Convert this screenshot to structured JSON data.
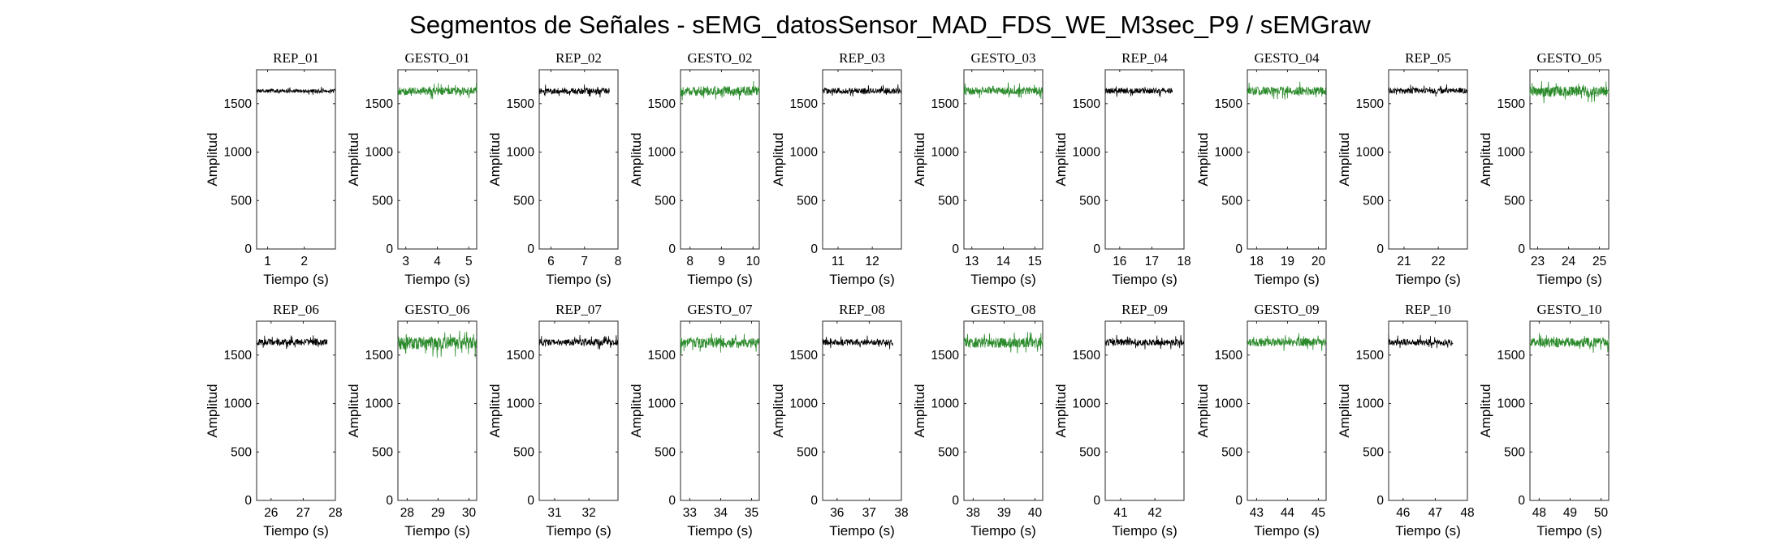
{
  "figure": {
    "title": "Segmentos de Señales - sEMG_datosSensor_MAD_FDS_WE_M3sec_P9 / sEMGraw"
  },
  "colors": {
    "rep_signal": "#000000",
    "gesto_signal": "#2a8a2a",
    "axes": "#262626",
    "background": "#ffffff"
  },
  "chart_data": [
    {
      "type": "line",
      "title": "REP_01",
      "color": "black",
      "xlabel": "Tiempo (s)",
      "ylabel": "Amplitud",
      "xlim": [
        0.7,
        2.85
      ],
      "ylim": [
        0,
        1850
      ],
      "xticks": [
        1,
        2
      ],
      "yticks": [
        0,
        500,
        1000,
        1500
      ],
      "signal": {
        "x_start": 0.7,
        "x_end": 2.85,
        "mean": 1630,
        "range": [
          1590,
          1675
        ]
      }
    },
    {
      "type": "line",
      "title": "GESTO_01",
      "color": "green",
      "xlabel": "Tiempo (s)",
      "ylabel": "Amplitud",
      "xlim": [
        2.75,
        5.25
      ],
      "ylim": [
        0,
        1850
      ],
      "xticks": [
        3,
        4,
        5
      ],
      "yticks": [
        0,
        500,
        1000,
        1500
      ],
      "signal": {
        "x_start": 2.75,
        "x_end": 5.25,
        "mean": 1630,
        "range": [
          1540,
          1720
        ]
      }
    },
    {
      "type": "line",
      "title": "REP_02",
      "color": "black",
      "xlabel": "Tiempo (s)",
      "ylabel": "Amplitud",
      "xlim": [
        5.65,
        8.0
      ],
      "ylim": [
        0,
        1850
      ],
      "xticks": [
        6,
        7,
        8
      ],
      "yticks": [
        0,
        500,
        1000,
        1500
      ],
      "signal": {
        "x_start": 5.65,
        "x_end": 7.75,
        "mean": 1630,
        "range": [
          1560,
          1700
        ]
      }
    },
    {
      "type": "line",
      "title": "GESTO_02",
      "color": "green",
      "xlabel": "Tiempo (s)",
      "ylabel": "Amplitud",
      "xlim": [
        7.7,
        10.2
      ],
      "ylim": [
        0,
        1850
      ],
      "xticks": [
        8,
        9,
        10
      ],
      "yticks": [
        0,
        500,
        1000,
        1500
      ],
      "signal": {
        "x_start": 7.7,
        "x_end": 10.2,
        "mean": 1630,
        "range": [
          1520,
          1740
        ]
      }
    },
    {
      "type": "line",
      "title": "REP_03",
      "color": "black",
      "xlabel": "Tiempo (s)",
      "ylabel": "Amplitud",
      "xlim": [
        10.55,
        12.85
      ],
      "ylim": [
        0,
        1850
      ],
      "xticks": [
        11,
        12
      ],
      "yticks": [
        0,
        500,
        1000,
        1500
      ],
      "signal": {
        "x_start": 10.55,
        "x_end": 12.85,
        "mean": 1630,
        "range": [
          1570,
          1700
        ]
      }
    },
    {
      "type": "line",
      "title": "GESTO_03",
      "color": "green",
      "xlabel": "Tiempo (s)",
      "ylabel": "Amplitud",
      "xlim": [
        12.75,
        15.25
      ],
      "ylim": [
        0,
        1850
      ],
      "xticks": [
        13,
        14,
        15
      ],
      "yticks": [
        0,
        500,
        1000,
        1500
      ],
      "signal": {
        "x_start": 12.75,
        "x_end": 15.25,
        "mean": 1630,
        "range": [
          1550,
          1720
        ]
      }
    },
    {
      "type": "line",
      "title": "REP_04",
      "color": "black",
      "xlabel": "Tiempo (s)",
      "ylabel": "Amplitud",
      "xlim": [
        15.55,
        18.0
      ],
      "ylim": [
        0,
        1850
      ],
      "xticks": [
        16,
        17,
        18
      ],
      "yticks": [
        0,
        500,
        1000,
        1500
      ],
      "signal": {
        "x_start": 15.55,
        "x_end": 17.65,
        "mean": 1630,
        "range": [
          1570,
          1700
        ]
      }
    },
    {
      "type": "line",
      "title": "GESTO_04",
      "color": "green",
      "xlabel": "Tiempo (s)",
      "ylabel": "Amplitud",
      "xlim": [
        17.7,
        20.25
      ],
      "ylim": [
        0,
        1850
      ],
      "xticks": [
        18,
        19,
        20
      ],
      "yticks": [
        0,
        500,
        1000,
        1500
      ],
      "signal": {
        "x_start": 17.7,
        "x_end": 20.25,
        "mean": 1630,
        "range": [
          1540,
          1730
        ]
      }
    },
    {
      "type": "line",
      "title": "REP_05",
      "color": "black",
      "xlabel": "Tiempo (s)",
      "ylabel": "Amplitud",
      "xlim": [
        20.55,
        22.85
      ],
      "ylim": [
        0,
        1850
      ],
      "xticks": [
        21,
        22
      ],
      "yticks": [
        0,
        500,
        1000,
        1500
      ],
      "signal": {
        "x_start": 20.55,
        "x_end": 22.85,
        "mean": 1630,
        "range": [
          1570,
          1700
        ]
      }
    },
    {
      "type": "line",
      "title": "GESTO_05",
      "color": "green",
      "xlabel": "Tiempo (s)",
      "ylabel": "Amplitud",
      "xlim": [
        22.75,
        25.3
      ],
      "ylim": [
        0,
        1850
      ],
      "xticks": [
        23,
        24,
        25
      ],
      "yticks": [
        0,
        500,
        1000,
        1500
      ],
      "signal": {
        "x_start": 22.75,
        "x_end": 25.3,
        "mean": 1630,
        "range": [
          1500,
          1740
        ]
      }
    },
    {
      "type": "line",
      "title": "REP_06",
      "color": "black",
      "xlabel": "Tiempo (s)",
      "ylabel": "Amplitud",
      "xlim": [
        25.55,
        28.0
      ],
      "ylim": [
        0,
        1850
      ],
      "xticks": [
        26,
        27,
        28
      ],
      "yticks": [
        0,
        500,
        1000,
        1500
      ],
      "signal": {
        "x_start": 25.55,
        "x_end": 27.75,
        "mean": 1630,
        "range": [
          1560,
          1710
        ]
      }
    },
    {
      "type": "line",
      "title": "GESTO_06",
      "color": "green",
      "xlabel": "Tiempo (s)",
      "ylabel": "Amplitud",
      "xlim": [
        27.7,
        30.25
      ],
      "ylim": [
        0,
        1850
      ],
      "xticks": [
        28,
        29,
        30
      ],
      "yticks": [
        0,
        500,
        1000,
        1500
      ],
      "signal": {
        "x_start": 27.7,
        "x_end": 30.25,
        "mean": 1630,
        "range": [
          1470,
          1760
        ]
      }
    },
    {
      "type": "line",
      "title": "REP_07",
      "color": "black",
      "xlabel": "Tiempo (s)",
      "ylabel": "Amplitud",
      "xlim": [
        30.55,
        32.85
      ],
      "ylim": [
        0,
        1850
      ],
      "xticks": [
        31,
        32
      ],
      "yticks": [
        0,
        500,
        1000,
        1500
      ],
      "signal": {
        "x_start": 30.55,
        "x_end": 32.85,
        "mean": 1630,
        "range": [
          1560,
          1710
        ]
      }
    },
    {
      "type": "line",
      "title": "GESTO_07",
      "color": "green",
      "xlabel": "Tiempo (s)",
      "ylabel": "Amplitud",
      "xlim": [
        32.7,
        35.25
      ],
      "ylim": [
        0,
        1850
      ],
      "xticks": [
        33,
        34,
        35
      ],
      "yticks": [
        0,
        500,
        1000,
        1500
      ],
      "signal": {
        "x_start": 32.7,
        "x_end": 35.25,
        "mean": 1630,
        "range": [
          1500,
          1740
        ]
      }
    },
    {
      "type": "line",
      "title": "REP_08",
      "color": "black",
      "xlabel": "Tiempo (s)",
      "ylabel": "Amplitud",
      "xlim": [
        35.55,
        38.0
      ],
      "ylim": [
        0,
        1850
      ],
      "xticks": [
        36,
        37,
        38
      ],
      "yticks": [
        0,
        500,
        1000,
        1500
      ],
      "signal": {
        "x_start": 35.55,
        "x_end": 37.75,
        "mean": 1630,
        "range": [
          1560,
          1710
        ]
      }
    },
    {
      "type": "line",
      "title": "GESTO_08",
      "color": "green",
      "xlabel": "Tiempo (s)",
      "ylabel": "Amplitud",
      "xlim": [
        37.7,
        40.25
      ],
      "ylim": [
        0,
        1850
      ],
      "xticks": [
        38,
        39,
        40
      ],
      "yticks": [
        0,
        500,
        1000,
        1500
      ],
      "signal": {
        "x_start": 37.7,
        "x_end": 40.25,
        "mean": 1630,
        "range": [
          1510,
          1750
        ]
      }
    },
    {
      "type": "line",
      "title": "REP_09",
      "color": "black",
      "xlabel": "Tiempo (s)",
      "ylabel": "Amplitud",
      "xlim": [
        40.55,
        42.85
      ],
      "ylim": [
        0,
        1850
      ],
      "xticks": [
        41,
        42
      ],
      "yticks": [
        0,
        500,
        1000,
        1500
      ],
      "signal": {
        "x_start": 40.55,
        "x_end": 42.85,
        "mean": 1630,
        "range": [
          1560,
          1710
        ]
      }
    },
    {
      "type": "line",
      "title": "GESTO_09",
      "color": "green",
      "xlabel": "Tiempo (s)",
      "ylabel": "Amplitud",
      "xlim": [
        42.7,
        45.25
      ],
      "ylim": [
        0,
        1850
      ],
      "xticks": [
        43,
        44,
        45
      ],
      "yticks": [
        0,
        500,
        1000,
        1500
      ],
      "signal": {
        "x_start": 42.7,
        "x_end": 45.25,
        "mean": 1630,
        "range": [
          1540,
          1730
        ]
      }
    },
    {
      "type": "line",
      "title": "REP_10",
      "color": "black",
      "xlabel": "Tiempo (s)",
      "ylabel": "Amplitud",
      "xlim": [
        45.55,
        48.0
      ],
      "ylim": [
        0,
        1850
      ],
      "xticks": [
        46,
        47,
        48
      ],
      "yticks": [
        0,
        500,
        1000,
        1500
      ],
      "signal": {
        "x_start": 45.55,
        "x_end": 47.55,
        "mean": 1630,
        "range": [
          1560,
          1710
        ]
      }
    },
    {
      "type": "line",
      "title": "GESTO_10",
      "color": "green",
      "xlabel": "Tiempo (s)",
      "ylabel": "Amplitud",
      "xlim": [
        47.7,
        50.25
      ],
      "ylim": [
        0,
        1850
      ],
      "xticks": [
        48,
        49,
        50
      ],
      "yticks": [
        0,
        500,
        1000,
        1500
      ],
      "signal": {
        "x_start": 47.7,
        "x_end": 50.25,
        "mean": 1630,
        "range": [
          1520,
          1740
        ]
      }
    }
  ]
}
